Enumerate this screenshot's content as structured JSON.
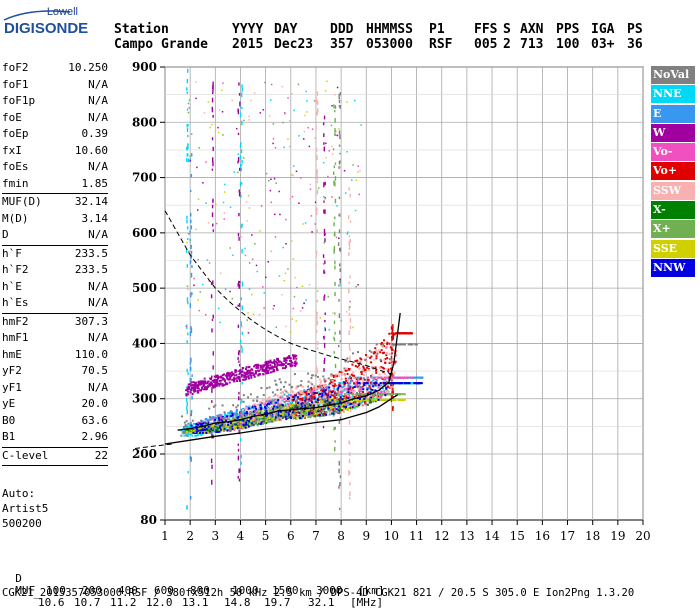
{
  "logo": {
    "top": "Lowell",
    "main": "DIGISONDE"
  },
  "header": {
    "row1": [
      "Station",
      "YYYY",
      "DAY",
      "DDD",
      "HHMMSS",
      "P1",
      "FFS",
      "S",
      "AXN",
      "PPS",
      "IGA",
      "PS"
    ],
    "row2": [
      "Campo Grande",
      "2015",
      "Dec23",
      "357",
      "053000",
      "RSF",
      "005",
      "2",
      "713",
      "100",
      "03+",
      "36"
    ]
  },
  "params": {
    "group1": [
      {
        "label": "foF2",
        "value": "10.250"
      },
      {
        "label": "foF1",
        "value": "N/A"
      },
      {
        "label": "foF1p",
        "value": "N/A"
      },
      {
        "label": "foE",
        "value": "N/A"
      },
      {
        "label": "foEp",
        "value": "0.39"
      },
      {
        "label": "fxI",
        "value": "10.60"
      },
      {
        "label": "foEs",
        "value": "N/A"
      },
      {
        "label": "fmin",
        "value": "1.85"
      }
    ],
    "group2": [
      {
        "label": "MUF(D)",
        "value": "32.14"
      },
      {
        "label": "M(D)",
        "value": "3.14"
      },
      {
        "label": "D",
        "value": "N/A"
      }
    ],
    "group3": [
      {
        "label": "h`F",
        "value": "233.5"
      },
      {
        "label": "h`F2",
        "value": "233.5"
      },
      {
        "label": "h`E",
        "value": "N/A"
      },
      {
        "label": "h`Es",
        "value": "N/A"
      }
    ],
    "group4": [
      {
        "label": "hmF2",
        "value": "307.3"
      },
      {
        "label": "hmF1",
        "value": "N/A"
      },
      {
        "label": "hmE",
        "value": "110.0"
      },
      {
        "label": "yF2",
        "value": "70.5"
      },
      {
        "label": "yF1",
        "value": "N/A"
      },
      {
        "label": "yE",
        "value": "20.0"
      },
      {
        "label": "B0",
        "value": "63.6"
      },
      {
        "label": "B1",
        "value": "2.96"
      }
    ],
    "group5": [
      {
        "label": "C-level",
        "value": "22"
      }
    ]
  },
  "auto": {
    "line1": "Auto:",
    "line2": "Artist5",
    "line3": "500200"
  },
  "legend": [
    {
      "label": "NoVal",
      "color": "#808080",
      "text_color": "#ffffff"
    },
    {
      "label": "NNE",
      "color": "#00d8f8",
      "text_color": "#ffffff"
    },
    {
      "label": "E",
      "color": "#3898f0",
      "text_color": "#ffffff"
    },
    {
      "label": "W",
      "color": "#a000a0",
      "text_color": "#ffffff"
    },
    {
      "label": "Vo-",
      "color": "#f050c0",
      "text_color": "#ffffff"
    },
    {
      "label": "Vo+",
      "color": "#e00000",
      "text_color": "#ffffff"
    },
    {
      "label": "SSW",
      "color": "#f8b0b0",
      "text_color": "#ffffff"
    },
    {
      "label": "X-",
      "color": "#008000",
      "text_color": "#ffffff"
    },
    {
      "label": "X+",
      "color": "#70b050",
      "text_color": "#ffffff"
    },
    {
      "label": "SSE",
      "color": "#d0d000",
      "text_color": "#ffffff"
    },
    {
      "label": "NNW",
      "color": "#0000e0",
      "text_color": "#ffffff"
    }
  ],
  "footer": {
    "d_label": "D",
    "d_values": [
      "100",
      "200",
      "400",
      "600",
      "800",
      "1000",
      "1500",
      "3000",
      "[km]"
    ],
    "muf_label": "MUF",
    "muf_values": [
      "10.6",
      "10.7",
      "11.2",
      "12.0",
      "13.1",
      "14.8",
      "19.7",
      "32.1",
      "[MHz]"
    ],
    "info": "CGK21_2015357053000.RSF / 380fx512h 50 kHz 2.5 km / DPS-4D CGK21 821 / 20.5 S 305.0 E Ion2Png 1.3.20"
  },
  "chart_data": {
    "type": "scatter",
    "x_ticks": [
      1,
      2,
      3,
      4,
      5,
      6,
      7,
      8,
      9,
      10,
      11,
      12,
      13,
      14,
      15,
      16,
      17,
      18,
      19,
      20
    ],
    "y_ticks": [
      80,
      200,
      300,
      400,
      500,
      600,
      700,
      800,
      900
    ],
    "xlim": [
      1,
      20
    ],
    "ylim": [
      80,
      900
    ],
    "grid": true,
    "legend_position": "right",
    "curves": {
      "fitted_trace": {
        "x": [
          1.5,
          2.0,
          2.5,
          3.0,
          3.5,
          4.0,
          4.5,
          5.0,
          5.5,
          6.0,
          6.5,
          7.0,
          7.5,
          8.0,
          8.5,
          9.0,
          9.5,
          9.9,
          10.1,
          10.25,
          10.35
        ],
        "y": [
          243,
          246,
          250,
          256,
          258,
          262,
          268,
          272,
          278,
          280,
          282,
          284,
          288,
          292,
          300,
          305,
          315,
          330,
          365,
          420,
          455
        ]
      },
      "true_height_profile": {
        "x": [
          1.0,
          2.0,
          3.0,
          4.0,
          5.0,
          6.0,
          7.0,
          8.0,
          9.0,
          9.5,
          10.0,
          10.25
        ],
        "y": [
          218,
          225,
          232,
          238,
          245,
          250,
          257,
          262,
          275,
          285,
          300,
          307
        ]
      },
      "muf_dashed": {
        "x": [
          1.0,
          1.5,
          2.0,
          2.5,
          3.0,
          3.5,
          4.0,
          4.5,
          5.0,
          5.5,
          6.0,
          6.5,
          7.0,
          7.5,
          8.0,
          8.5,
          9.0,
          9.5,
          10.0
        ],
        "y": [
          640,
          600,
          560,
          530,
          500,
          478,
          458,
          440,
          425,
          412,
          400,
          392,
          385,
          378,
          372,
          366,
          360,
          352,
          345
        ]
      },
      "lower_dashed": {
        "x": [
          1.0,
          1.3,
          1.7
        ],
        "y": [
          210,
          214,
          218
        ]
      }
    },
    "echo_bands": [
      {
        "name": "W",
        "color": "#a000a0",
        "x": [
          1.8,
          6.2
        ],
        "y": [
          318,
          375
        ],
        "density": 420
      },
      {
        "name": "NNE",
        "color": "#00d8f8",
        "x": [
          1.6,
          11.0
        ],
        "y": [
          235,
          330
        ],
        "density": 520
      },
      {
        "name": "E",
        "color": "#3898f0",
        "x": [
          1.7,
          11.2
        ],
        "y": [
          240,
          340
        ],
        "density": 500
      },
      {
        "name": "Vo-",
        "color": "#f050c0",
        "x": [
          2.0,
          10.8
        ],
        "y": [
          245,
          340
        ],
        "density": 380
      },
      {
        "name": "Vo+",
        "color": "#e00000",
        "x": [
          6.0,
          10.8
        ],
        "y": [
          255,
          420
        ],
        "density": 420
      },
      {
        "name": "SSW",
        "color": "#f8b0b0",
        "x": [
          4.0,
          10.5
        ],
        "y": [
          260,
          400
        ],
        "density": 320
      },
      {
        "name": "X-",
        "color": "#008000",
        "x": [
          1.8,
          10.5
        ],
        "y": [
          245,
          300
        ],
        "density": 260
      },
      {
        "name": "X+",
        "color": "#70b050",
        "x": [
          1.8,
          10.5
        ],
        "y": [
          248,
          310
        ],
        "density": 240
      },
      {
        "name": "SSE",
        "color": "#d0d000",
        "x": [
          1.8,
          10.5
        ],
        "y": [
          240,
          300
        ],
        "density": 240
      },
      {
        "name": "NNW",
        "color": "#0000e0",
        "x": [
          2.0,
          11.2
        ],
        "y": [
          240,
          330
        ],
        "density": 300
      },
      {
        "name": "NoVal",
        "color": "#808080",
        "x": [
          1.6,
          11.0
        ],
        "y": [
          235,
          400
        ],
        "density": 200
      }
    ],
    "vertical_streaks": [
      {
        "x": 1.85,
        "y": [
          100,
          900
        ],
        "color": "#00d8f8"
      },
      {
        "x": 2.0,
        "y": [
          120,
          750
        ],
        "color": "#3898f0"
      },
      {
        "x": 2.85,
        "y": [
          150,
          880
        ],
        "color": "#a000a0"
      },
      {
        "x": 3.9,
        "y": [
          150,
          900
        ],
        "color": "#a000a0"
      },
      {
        "x": 4.0,
        "y": [
          180,
          870
        ],
        "color": "#00d8f8"
      },
      {
        "x": 7.0,
        "y": [
          200,
          900
        ],
        "color": "#f8b0b0"
      },
      {
        "x": 7.3,
        "y": [
          250,
          850
        ],
        "color": "#a000a0"
      },
      {
        "x": 7.7,
        "y": [
          200,
          850
        ],
        "color": "#70b050"
      },
      {
        "x": 7.9,
        "y": [
          100,
          900
        ],
        "color": "#808080"
      },
      {
        "x": 8.3,
        "y": [
          120,
          700
        ],
        "color": "#f8b0b0"
      },
      {
        "x": 10.0,
        "y": [
          280,
          440
        ],
        "color": "#e00000"
      }
    ]
  }
}
